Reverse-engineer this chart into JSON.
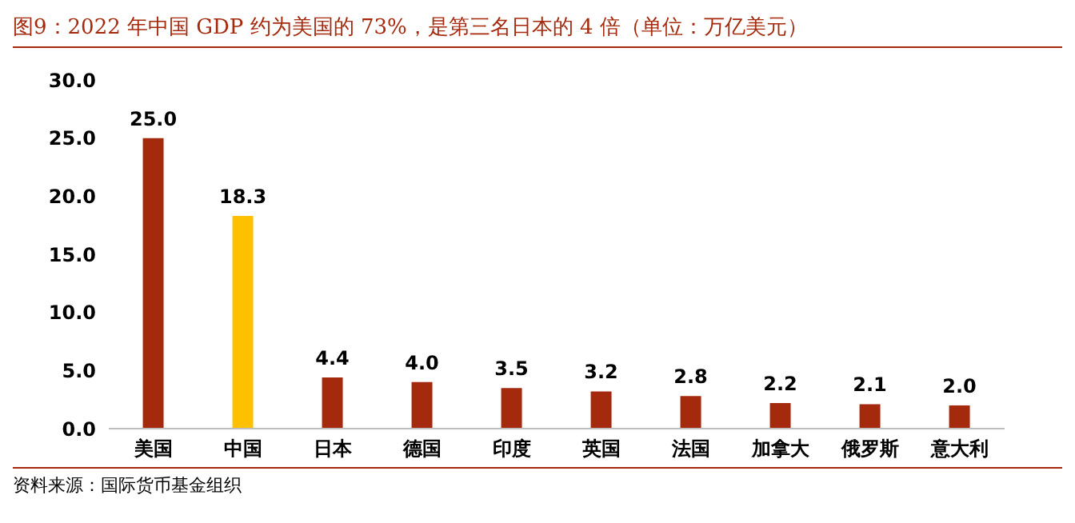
{
  "chart_data": {
    "type": "bar",
    "title": "图9：2022 年中国 GDP 约为美国的 73%，是第三名日本的 4 倍（单位：万亿美元）",
    "categories": [
      "美国",
      "中国",
      "日本",
      "德国",
      "印度",
      "英国",
      "法国",
      "加拿大",
      "俄罗斯",
      "意大利"
    ],
    "values": [
      25.0,
      18.3,
      4.4,
      4.0,
      3.5,
      3.2,
      2.8,
      2.2,
      2.1,
      2.0
    ],
    "value_labels": [
      "25.0",
      "18.3",
      "4.4",
      "4.0",
      "3.5",
      "3.2",
      "2.8",
      "2.2",
      "2.1",
      "2.0"
    ],
    "colors": [
      "#a52a0d",
      "#ffc000",
      "#a52a0d",
      "#a52a0d",
      "#a52a0d",
      "#a52a0d",
      "#a52a0d",
      "#a52a0d",
      "#a52a0d",
      "#a52a0d"
    ],
    "ylim": [
      0,
      30
    ],
    "yticks": [
      {
        "value": 0,
        "label": "0.0"
      },
      {
        "value": 5,
        "label": "5.0"
      },
      {
        "value": 10,
        "label": "10.0"
      },
      {
        "value": 15,
        "label": "15.0"
      },
      {
        "value": 20,
        "label": "20.0"
      },
      {
        "value": 25,
        "label": "25.0"
      },
      {
        "value": 30,
        "label": "30.0"
      }
    ],
    "grid": false,
    "legend": false,
    "annotations": [
      "资料来源：国际货币基金组织"
    ]
  }
}
